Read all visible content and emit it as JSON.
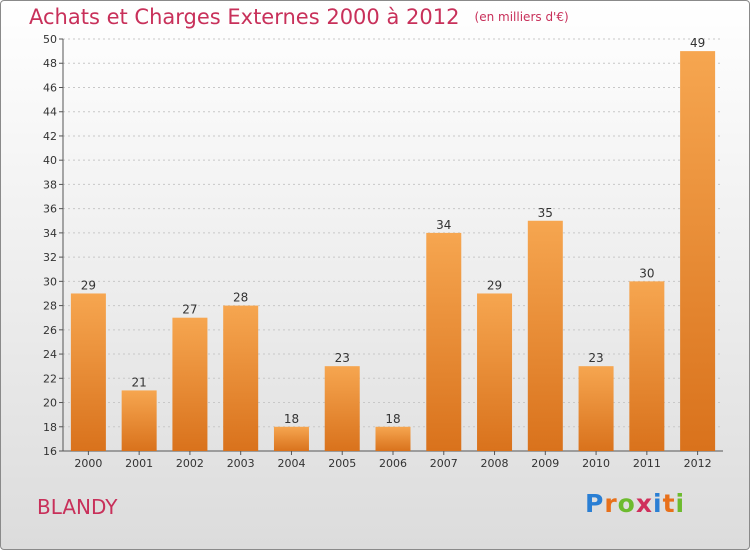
{
  "header": {
    "title": "Achats et Charges Externes 2000 à 2012",
    "subtitle": "(en milliers d'€)"
  },
  "location": "BLANDY",
  "logo": {
    "text": "Proxiti",
    "letters": [
      {
        "char": "P",
        "color": "#2a7fd4"
      },
      {
        "char": "r",
        "color": "#e8701a"
      },
      {
        "char": "o",
        "color": "#6dbb2e"
      },
      {
        "char": "x",
        "color": "#d02f5b"
      },
      {
        "char": "i",
        "color": "#2a7fd4"
      },
      {
        "char": "t",
        "color": "#e8701a"
      },
      {
        "char": "i",
        "color": "#6dbb2e"
      }
    ]
  },
  "colors": {
    "accent": "#c8305a",
    "bar_top": "#f6a650",
    "bar_bottom": "#d9721c"
  },
  "chart_data": {
    "type": "bar",
    "categories": [
      "2000",
      "2001",
      "2002",
      "2003",
      "2004",
      "2005",
      "2006",
      "2007",
      "2008",
      "2009",
      "2010",
      "2011",
      "2012"
    ],
    "values": [
      29,
      21,
      27,
      28,
      18,
      23,
      18,
      34,
      29,
      35,
      23,
      30,
      49
    ],
    "ylim": [
      16,
      50
    ],
    "yticks": [
      16,
      18,
      20,
      22,
      24,
      26,
      28,
      30,
      32,
      34,
      36,
      38,
      40,
      42,
      44,
      46,
      48,
      50
    ],
    "grid": "horizontal-dashed",
    "title": "Achats et Charges Externes 2000 à 2012",
    "xlabel": "",
    "ylabel": ""
  }
}
